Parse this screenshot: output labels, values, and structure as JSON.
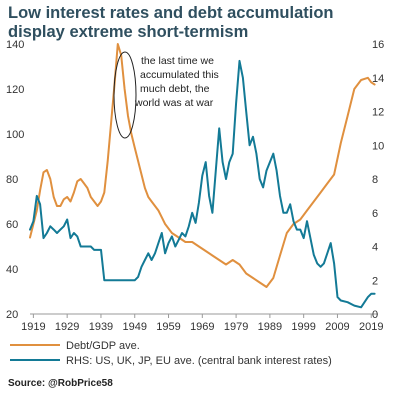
{
  "title_line1": "Low interest rates and debt accumulation",
  "title_line2": "display extreme short-termism",
  "source": "Source: @RobPrice58",
  "annotation": [
    "the last time we",
    "accumulated this",
    "much debt, the",
    "world was at war"
  ],
  "colors": {
    "debt": "#e0903f",
    "rates": "#137a96",
    "title": "#2f4f5f"
  },
  "chart_data": {
    "type": "line",
    "title": "Low interest rates and debt accumulation display extreme short-termism",
    "xlabel": "",
    "ylabel": "",
    "xlim": [
      1918,
      2021
    ],
    "ylim_left": [
      20,
      140
    ],
    "ylim_right": [
      0,
      16
    ],
    "x_ticks": [
      "1919",
      "1929",
      "1939",
      "1949",
      "1959",
      "1969",
      "1979",
      "1989",
      "1999",
      "2009",
      "2019"
    ],
    "y_ticks_left": [
      "20",
      "40",
      "60",
      "80",
      "100",
      "120",
      "140"
    ],
    "y_ticks_right": [
      "0",
      "2",
      "4",
      "6",
      "8",
      "10",
      "12",
      "14",
      "16"
    ],
    "grid": false,
    "legend": "bottom-left",
    "series": [
      {
        "name": "Debt/GDP ave.",
        "axis": "left",
        "color": "#e0903f",
        "x": [
          1918,
          1919,
          1920,
          1921,
          1922,
          1923,
          1924,
          1925,
          1926,
          1927,
          1928,
          1929,
          1930,
          1931,
          1932,
          1933,
          1934,
          1935,
          1936,
          1937,
          1938,
          1939,
          1940,
          1941,
          1942,
          1943,
          1944,
          1945,
          1946,
          1947,
          1948,
          1949,
          1950,
          1951,
          1952,
          1953,
          1954,
          1955,
          1956,
          1957,
          1958,
          1959,
          1960,
          1962,
          1964,
          1966,
          1968,
          1970,
          1972,
          1974,
          1976,
          1978,
          1980,
          1982,
          1984,
          1986,
          1988,
          1990,
          1992,
          1994,
          1996,
          1998,
          2000,
          2002,
          2004,
          2006,
          2008,
          2010,
          2012,
          2014,
          2016,
          2018,
          2019,
          2020
        ],
        "values": [
          54,
          60,
          66,
          75,
          83,
          84,
          80,
          72,
          68,
          68,
          71,
          72,
          70,
          74,
          79,
          80,
          78,
          76,
          72,
          70,
          68,
          70,
          74,
          88,
          105,
          122,
          140,
          135,
          120,
          108,
          100,
          94,
          88,
          82,
          76,
          72,
          70,
          68,
          66,
          63,
          60,
          58,
          56,
          54,
          52,
          52,
          50,
          48,
          46,
          44,
          42,
          44,
          42,
          38,
          36,
          34,
          32,
          36,
          46,
          56,
          60,
          62,
          66,
          70,
          74,
          78,
          82,
          96,
          108,
          120,
          124,
          125,
          123,
          122
        ]
      },
      {
        "name": "RHS: US, UK, JP, EU ave. (central bank interest rates)",
        "axis": "right",
        "color": "#137a96",
        "x": [
          1918,
          1919,
          1920,
          1921,
          1922,
          1923,
          1924,
          1925,
          1926,
          1927,
          1928,
          1929,
          1930,
          1931,
          1932,
          1933,
          1934,
          1935,
          1936,
          1937,
          1938,
          1939,
          1940,
          1941,
          1942,
          1943,
          1944,
          1945,
          1946,
          1947,
          1948,
          1949,
          1950,
          1951,
          1952,
          1953,
          1954,
          1955,
          1956,
          1957,
          1958,
          1959,
          1960,
          1961,
          1962,
          1963,
          1964,
          1965,
          1966,
          1967,
          1968,
          1969,
          1970,
          1971,
          1972,
          1973,
          1974,
          1975,
          1976,
          1977,
          1978,
          1979,
          1980,
          1981,
          1982,
          1983,
          1984,
          1985,
          1986,
          1987,
          1988,
          1989,
          1990,
          1991,
          1992,
          1993,
          1994,
          1995,
          1996,
          1997,
          1998,
          1999,
          2000,
          2001,
          2002,
          2003,
          2004,
          2005,
          2006,
          2007,
          2008,
          2009,
          2010,
          2012,
          2014,
          2016,
          2018,
          2019,
          2020
        ],
        "values": [
          5.0,
          5.5,
          7.0,
          6.5,
          4.5,
          4.8,
          5.2,
          5.0,
          4.8,
          5.0,
          5.2,
          5.6,
          4.5,
          4.8,
          4.6,
          4.0,
          4.0,
          4.0,
          4.0,
          3.8,
          3.8,
          3.8,
          2.0,
          2.0,
          2.0,
          2.0,
          2.0,
          2.0,
          2.0,
          2.0,
          2.0,
          2.0,
          2.2,
          2.8,
          3.2,
          3.6,
          3.2,
          3.6,
          4.2,
          4.8,
          3.6,
          4.2,
          4.6,
          4.0,
          4.4,
          4.8,
          4.6,
          5.2,
          6.0,
          5.4,
          6.6,
          8.2,
          9.0,
          7.0,
          6.0,
          8.5,
          11.0,
          9.0,
          8.0,
          9.0,
          9.5,
          12.5,
          15.0,
          14.0,
          12.0,
          10.0,
          10.5,
          9.5,
          8.0,
          7.5,
          8.5,
          9.0,
          9.5,
          8.5,
          7.0,
          6.0,
          6.0,
          6.5,
          5.5,
          5.0,
          5.0,
          4.5,
          5.5,
          4.5,
          3.5,
          3.0,
          2.8,
          3.0,
          3.6,
          4.2,
          3.0,
          1.0,
          0.8,
          0.7,
          0.5,
          0.4,
          1.0,
          1.2,
          1.2
        ]
      }
    ]
  }
}
